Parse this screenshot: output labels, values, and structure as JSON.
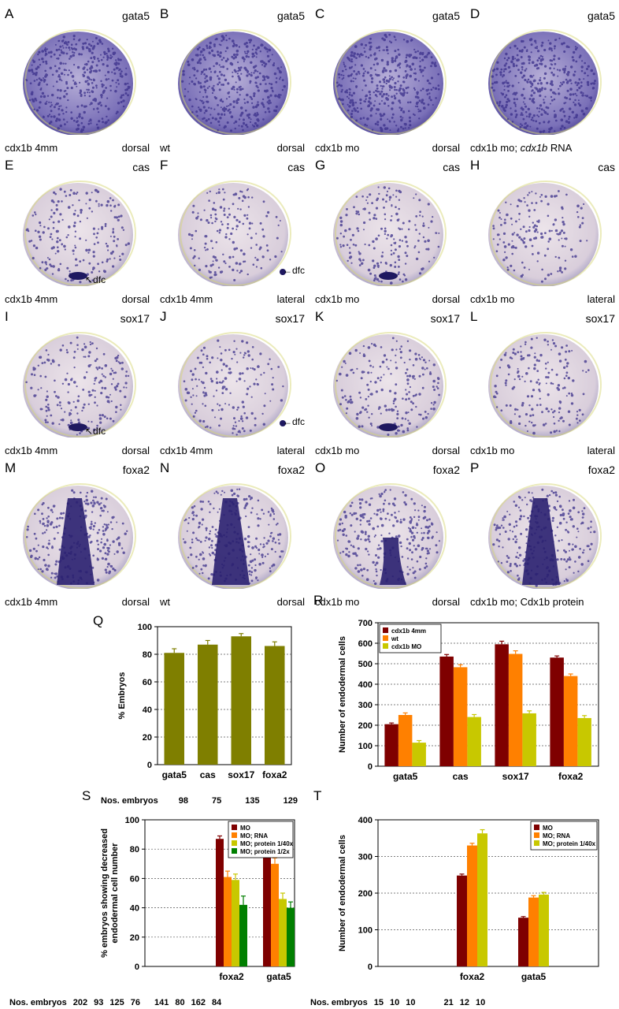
{
  "panels": [
    {
      "letter": "A",
      "gene": "gata5",
      "left": "cdx1b 4mm",
      "right": "dorsal",
      "embryo": "dorsal-gata5"
    },
    {
      "letter": "B",
      "gene": "gata5",
      "left": "wt",
      "right": "dorsal",
      "embryo": "dorsal-gata5"
    },
    {
      "letter": "C",
      "gene": "gata5",
      "left": "cdx1b mo",
      "right": "dorsal",
      "embryo": "dorsal-gata5"
    },
    {
      "letter": "D",
      "gene": "gata5",
      "left": "cdx1b mo; ",
      "left_italic": "cdx1b",
      "left_suffix": " RNA",
      "right": "",
      "embryo": "dorsal-gata5"
    },
    {
      "letter": "E",
      "gene": "cas",
      "left": "cdx1b 4mm",
      "right": "dorsal",
      "embryo": "dorsal-cas",
      "anno": "dfc"
    },
    {
      "letter": "F",
      "gene": "cas",
      "left": "cdx1b 4mm",
      "right": "lateral",
      "embryo": "lateral-cas",
      "anno": "dfc"
    },
    {
      "letter": "G",
      "gene": "cas",
      "left": "cdx1b mo",
      "right": "dorsal",
      "embryo": "dorsal-cas-mo"
    },
    {
      "letter": "H",
      "gene": "cas",
      "left": "cdx1b mo",
      "right": "lateral",
      "embryo": "lateral-cas-mo"
    },
    {
      "letter": "I",
      "gene": "sox17",
      "left": "cdx1b 4mm",
      "right": "dorsal",
      "embryo": "dorsal-cas",
      "anno": "dfc"
    },
    {
      "letter": "J",
      "gene": "sox17",
      "left": "cdx1b 4mm",
      "right": "lateral",
      "embryo": "lateral-cas",
      "anno": "dfc"
    },
    {
      "letter": "K",
      "gene": "sox17",
      "left": "cdx1b mo",
      "right": "dorsal",
      "embryo": "dorsal-cas-mo"
    },
    {
      "letter": "L",
      "gene": "sox17",
      "left": "cdx1b mo",
      "right": "lateral",
      "embryo": "lateral-cas-mo"
    },
    {
      "letter": "M",
      "gene": "foxa2",
      "left": "cdx1b 4mm",
      "right": "dorsal",
      "embryo": "foxa2"
    },
    {
      "letter": "N",
      "gene": "foxa2",
      "left": "wt",
      "right": "dorsal",
      "embryo": "foxa2"
    },
    {
      "letter": "O",
      "gene": "foxa2",
      "left": "cdx1b mo",
      "right": "dorsal",
      "embryo": "foxa2-mo"
    },
    {
      "letter": "P",
      "gene": "foxa2",
      "left": "cdx1b mo; Cdx1b protein",
      "right": "",
      "embryo": "foxa2"
    }
  ],
  "colors": {
    "olive": "#7f7f00",
    "darkred": "#7f0000",
    "orange": "#ff8000",
    "yellowgreen": "#c8c800",
    "green": "#007f00",
    "stain": "#3a2f8a",
    "embryo_bg": "#e6dde4"
  },
  "charts": {
    "Q": {
      "letter": "Q",
      "nos_label": "Nos. embryos",
      "nos": [
        "98",
        "75",
        "135",
        "129"
      ],
      "chart_data": {
        "type": "bar",
        "ylabel": "% Embryos",
        "ylim": [
          0,
          100
        ],
        "yticks": [
          0,
          20,
          40,
          60,
          80,
          100
        ],
        "categories": [
          "gata5",
          "cas",
          "sox17",
          "foxa2"
        ],
        "series": [
          {
            "values": [
              81,
              87,
              93,
              86
            ],
            "errors": [
              3,
              3,
              2,
              3
            ]
          }
        ],
        "grid": true
      }
    },
    "R": {
      "letter": "R",
      "nos_label": "",
      "nos": [],
      "chart_data": {
        "type": "bar",
        "ylabel": "Number of endodermal cells",
        "ylim": [
          0,
          700
        ],
        "yticks": [
          0,
          100,
          200,
          300,
          400,
          500,
          600,
          700
        ],
        "categories": [
          "gata5",
          "cas",
          "sox17",
          "foxa2"
        ],
        "series": [
          {
            "name": "cdx1b 4mm",
            "values": [
              205,
              535,
              595,
              530
            ],
            "errors": [
              6,
              10,
              15,
              8
            ]
          },
          {
            "name": "wt",
            "values": [
              250,
              483,
              548,
              440
            ],
            "errors": [
              10,
              12,
              15,
              10
            ]
          },
          {
            "name": "cdx1b MO",
            "values": [
              115,
              240,
              258,
              235
            ],
            "errors": [
              10,
              12,
              12,
              12
            ]
          }
        ],
        "legend": "top-left",
        "grid": true
      }
    },
    "S": {
      "letter": "S",
      "nos_label": "Nos. embryos",
      "nos": [
        "202",
        "93",
        "125",
        "76",
        "141",
        "80",
        "162",
        "84"
      ],
      "chart_data": {
        "type": "bar",
        "ylabel": "% embryos showing decreased endodermal cell number",
        "ylim": [
          0,
          100
        ],
        "yticks": [
          0,
          20,
          40,
          60,
          80,
          100
        ],
        "categories": [
          "foxa2",
          "gata5"
        ],
        "series": [
          {
            "name": "MO",
            "values": [
              87,
              76
            ],
            "errors": [
              2,
              3
            ]
          },
          {
            "name": "MO; RNA",
            "values": [
              61,
              70
            ],
            "errors": [
              4,
              4
            ]
          },
          {
            "name": "MO; protein 1/40x",
            "values": [
              59,
              46
            ],
            "errors": [
              4,
              4
            ]
          },
          {
            "name": "MO; protein 1/2x",
            "values": [
              42,
              40
            ],
            "errors": [
              6,
              4
            ]
          }
        ],
        "legend": "top-right",
        "grid": true
      }
    },
    "T": {
      "letter": "T",
      "nos_label": "Nos. embryos",
      "nos": [
        "15",
        "10",
        "10",
        "21",
        "12",
        "10"
      ],
      "chart_data": {
        "type": "bar",
        "ylabel": "Number of endodermal cells",
        "ylim": [
          0,
          400
        ],
        "yticks": [
          0,
          100,
          200,
          300,
          400
        ],
        "categories": [
          "foxa2",
          "gata5"
        ],
        "series": [
          {
            "name": "MO",
            "values": [
              248,
              133
            ],
            "errors": [
              4,
              3
            ]
          },
          {
            "name": "MO; RNA",
            "values": [
              330,
              188
            ],
            "errors": [
              6,
              5
            ]
          },
          {
            "name": "MO; protein 1/40x",
            "values": [
              363,
              196
            ],
            "errors": [
              10,
              6
            ]
          }
        ],
        "legend": "top-right",
        "grid": true
      }
    }
  }
}
